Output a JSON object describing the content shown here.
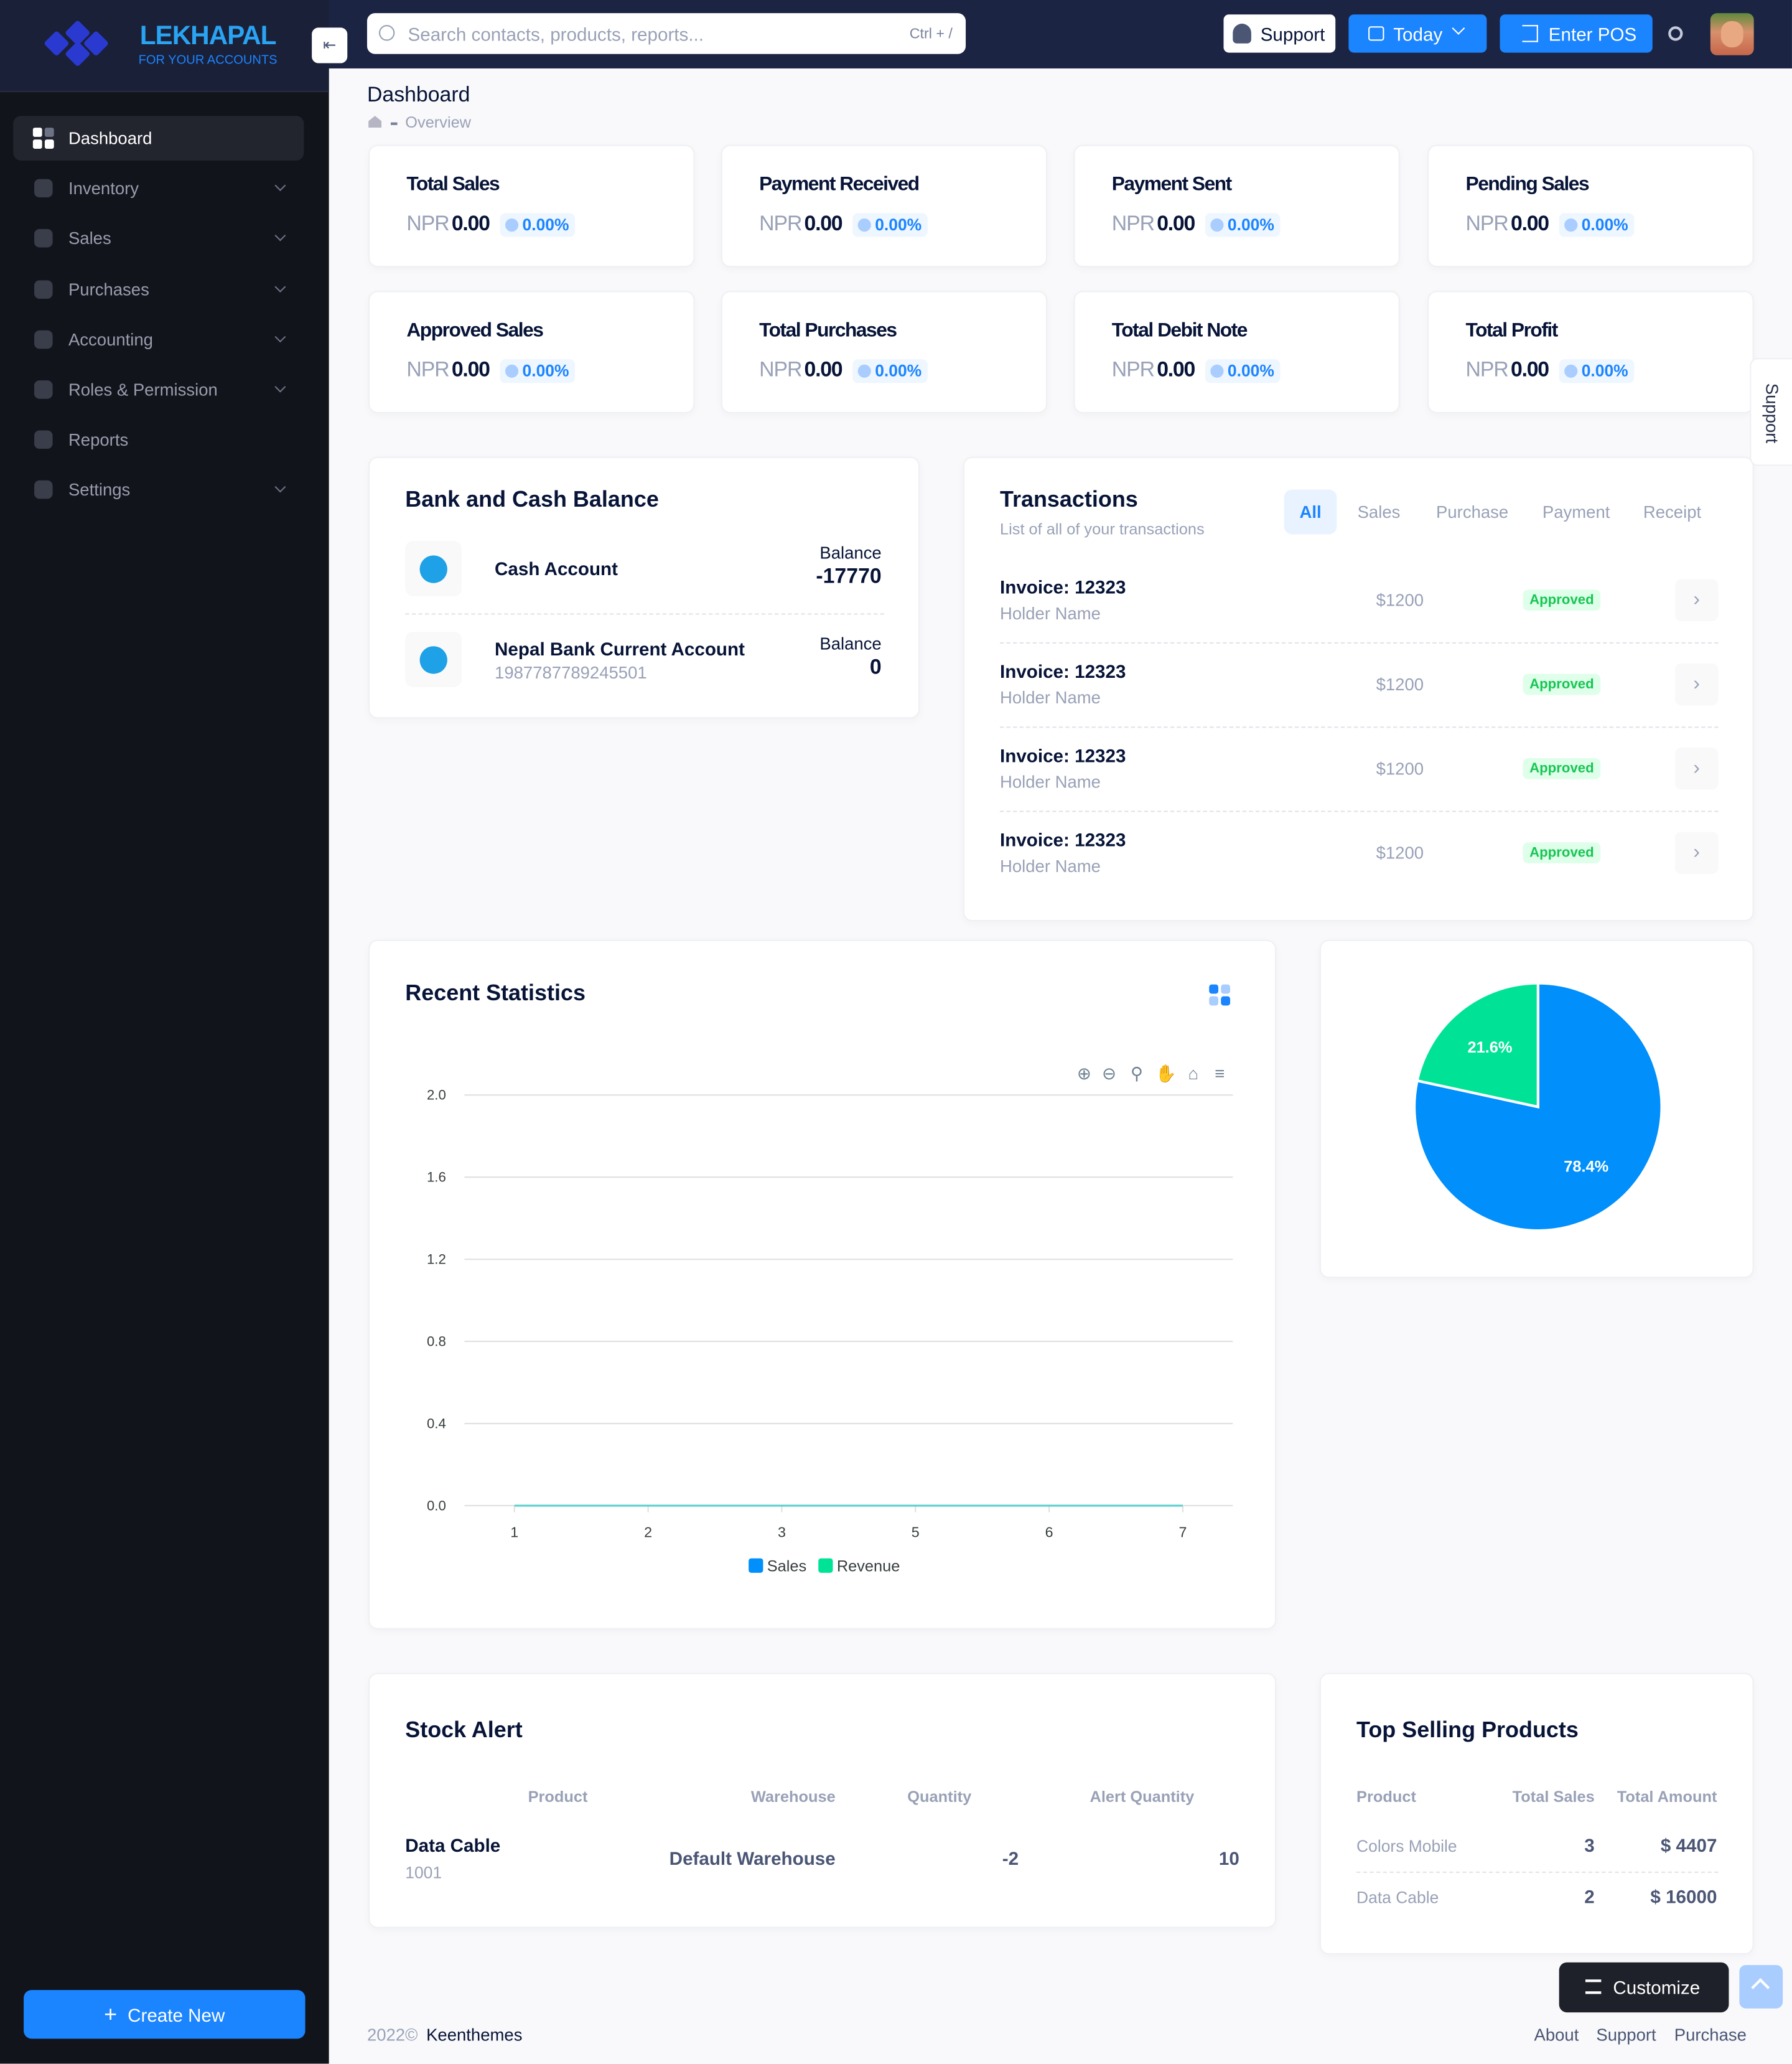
{
  "brand": {
    "name": "LEKHAPAL",
    "tagline": "FOR YOUR ACCOUNTS"
  },
  "search": {
    "placeholder": "Search contacts, products, reports...",
    "shortcut": "Ctrl + /"
  },
  "topbar": {
    "support": "Support",
    "today": "Today",
    "pos": "Enter POS"
  },
  "nav": [
    {
      "label": "Dashboard",
      "active": true
    },
    {
      "label": "Inventory",
      "expandable": true
    },
    {
      "label": "Sales",
      "expandable": true
    },
    {
      "label": "Purchases",
      "expandable": true
    },
    {
      "label": "Accounting",
      "expandable": true
    },
    {
      "label": "Roles & Permission",
      "expandable": true
    },
    {
      "label": "Reports"
    },
    {
      "label": "Settings",
      "expandable": true
    }
  ],
  "create_new": "Create New",
  "page": {
    "title": "Dashboard",
    "breadcrumb": "Overview"
  },
  "stats": [
    {
      "title": "Total Sales",
      "currency": "NPR",
      "amount": "0.00",
      "change": "0.00%"
    },
    {
      "title": "Payment Received",
      "currency": "NPR",
      "amount": "0.00",
      "change": "0.00%"
    },
    {
      "title": "Payment Sent",
      "currency": "NPR",
      "amount": "0.00",
      "change": "0.00%"
    },
    {
      "title": "Pending Sales",
      "currency": "NPR",
      "amount": "0.00",
      "change": "0.00%"
    },
    {
      "title": "Approved Sales",
      "currency": "NPR",
      "amount": "0.00",
      "change": "0.00%"
    },
    {
      "title": "Total Purchases",
      "currency": "NPR",
      "amount": "0.00",
      "change": "0.00%"
    },
    {
      "title": "Total Debit Note",
      "currency": "NPR",
      "amount": "0.00",
      "change": "0.00%"
    },
    {
      "title": "Total Profit",
      "currency": "NPR",
      "amount": "0.00",
      "change": "0.00%"
    }
  ],
  "bank": {
    "title": "Bank and Cash Balance",
    "accounts": [
      {
        "name": "Cash Account",
        "balance_label": "Balance",
        "balance": "-17770"
      },
      {
        "name": "Nepal Bank Current Account",
        "number": "1987787789245501",
        "balance_label": "Balance",
        "balance": "0"
      }
    ]
  },
  "transactions": {
    "title": "Transactions",
    "subtitle": "List of all of your transactions",
    "tabs": [
      "All",
      "Sales",
      "Purchase",
      "Payment",
      "Receipt"
    ],
    "rows": [
      {
        "invoice": "Invoice: 12323",
        "holder": "Holder Name",
        "amount": "$1200",
        "status": "Approved"
      },
      {
        "invoice": "Invoice: 12323",
        "holder": "Holder Name",
        "amount": "$1200",
        "status": "Approved"
      },
      {
        "invoice": "Invoice: 12323",
        "holder": "Holder Name",
        "amount": "$1200",
        "status": "Approved"
      },
      {
        "invoice": "Invoice: 12323",
        "holder": "Holder Name",
        "amount": "$1200",
        "status": "Approved"
      }
    ]
  },
  "statistics": {
    "title": "Recent Statistics"
  },
  "chart_data": [
    {
      "type": "line",
      "categories": [
        "1",
        "2",
        "3",
        "5",
        "6",
        "7"
      ],
      "series": [
        {
          "name": "Sales",
          "color": "#008ffb",
          "values": [
            0,
            0,
            0,
            0,
            0,
            0
          ]
        },
        {
          "name": "Revenue",
          "color": "#00e396",
          "values": [
            0,
            0,
            0,
            0,
            0,
            0
          ]
        }
      ],
      "ylim": [
        0,
        2
      ],
      "yticks": [
        {
          "value": 0,
          "label": "0.0"
        },
        0.4,
        0.8,
        1.2,
        1.6,
        {
          "value": 2,
          "label": "2.0"
        }
      ],
      "grid": true
    },
    {
      "type": "pie",
      "values": [
        78.4,
        21.6
      ],
      "value_labels": [
        "78.4%",
        "21.6%"
      ],
      "colors": [
        "#008ffb",
        "#00e396"
      ]
    }
  ],
  "stock_alert": {
    "title": "Stock Alert",
    "columns": [
      "Product",
      "Warehouse",
      "Quantity",
      "Alert Quantity"
    ],
    "rows": [
      {
        "product": "Data Cable",
        "code": "1001",
        "warehouse": "Default Warehouse",
        "quantity": -2,
        "alert_quantity": 10
      }
    ]
  },
  "top_selling": {
    "title": "Top Selling Products",
    "columns": [
      "Product",
      "Total Sales",
      "Total Amount"
    ],
    "rows": [
      {
        "product": "Colors Mobile",
        "sales": 3,
        "amount": "$ 4407"
      },
      {
        "product": "Data Cable",
        "sales": 2,
        "amount": "$ 16000"
      }
    ]
  },
  "footer": {
    "year": "2022©",
    "company": "Keenthemes",
    "links": [
      "About",
      "Support",
      "Purchase"
    ]
  },
  "customize": "Customize",
  "side_tab": "Support"
}
